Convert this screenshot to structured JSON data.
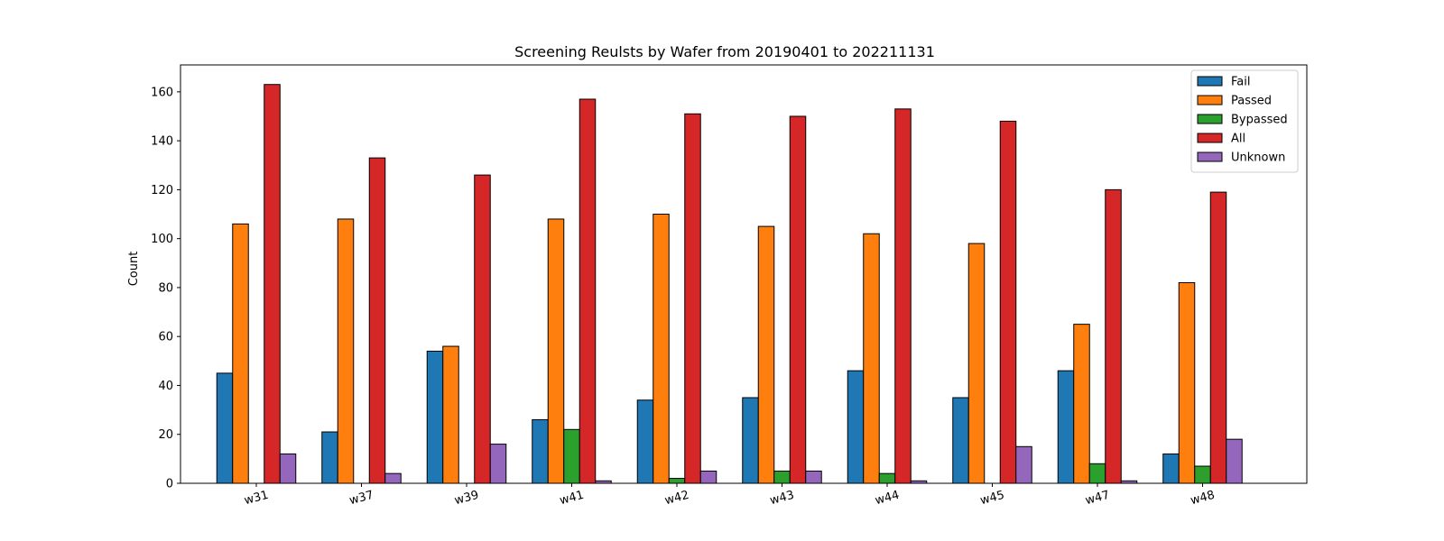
{
  "chart_data": {
    "type": "bar",
    "title": "Screening Reulsts by Wafer from 20190401 to 202211131",
    "xlabel": "",
    "ylabel": "Count",
    "ylim": [
      0,
      171
    ],
    "yticks": [
      0,
      20,
      40,
      60,
      80,
      100,
      120,
      140,
      160
    ],
    "categories": [
      "w31",
      "w37",
      "w39",
      "w41",
      "w42",
      "w43",
      "w44",
      "w45",
      "w47",
      "w48"
    ],
    "legend_position": "top-right",
    "grid": false,
    "series": [
      {
        "name": "Fail",
        "color": "#1f77b4",
        "values": [
          45,
          21,
          54,
          26,
          34,
          35,
          46,
          35,
          46,
          12
        ]
      },
      {
        "name": "Passed",
        "color": "#ff7f0e",
        "values": [
          106,
          108,
          56,
          108,
          110,
          105,
          102,
          98,
          65,
          82
        ]
      },
      {
        "name": "Bypassed",
        "color": "#2ca02c",
        "values": [
          0,
          0,
          0,
          22,
          2,
          5,
          4,
          0,
          8,
          7
        ]
      },
      {
        "name": "All",
        "color": "#d62728",
        "values": [
          163,
          133,
          126,
          157,
          151,
          150,
          153,
          148,
          120,
          119
        ]
      },
      {
        "name": "Unknown",
        "color": "#9467bd",
        "values": [
          12,
          4,
          16,
          1,
          5,
          5,
          1,
          15,
          1,
          18
        ]
      }
    ]
  }
}
